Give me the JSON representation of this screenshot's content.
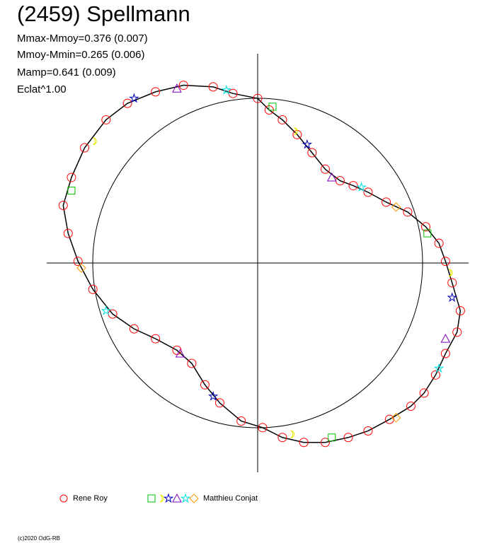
{
  "chart_data": {
    "type": "polar-scatter",
    "title": "(2459) Spellmann",
    "annotations": [
      "Mmax-Mmoy=0.376 (0.007)",
      "Mmoy-Mmin=0.265 (0.006)",
      "Mamp=0.641 (0.009)",
      "Eclat^1.00"
    ],
    "footer": "(c)2020 OdG-RB",
    "xlim": [
      -1.28,
      1.28
    ],
    "ylim": [
      -1.28,
      1.28
    ],
    "series": [
      {
        "name": "Rene Roy",
        "color": "#ff0000",
        "x": [
          0,
          0.07,
          0.15,
          0.24,
          0.33,
          0.41,
          0.5,
          0.58,
          0.67,
          0.78,
          0.91,
          1.02,
          1.1,
          1.14,
          1.18,
          1.23,
          1.21,
          1.14,
          1.08,
          1.01,
          0.93,
          0.8,
          0.67,
          0.55,
          0.41,
          0.28,
          0.15,
          0.03,
          -0.1,
          -0.23,
          -0.32,
          -0.4,
          -0.49,
          -0.62,
          -0.75,
          -0.88,
          -1.0,
          -1.09,
          -1.15,
          -1.18,
          -1.13,
          -1.05,
          -0.92,
          -0.79,
          -0.62,
          -0.45,
          -0.27,
          -0.15
        ],
        "values": [
          1.0,
          0.93,
          0.87,
          0.78,
          0.67,
          0.57,
          0.5,
          0.47,
          0.43,
          0.37,
          0.31,
          0.22,
          0.12,
          0.01,
          -0.12,
          -0.29,
          -0.42,
          -0.55,
          -0.68,
          -0.79,
          -0.87,
          -0.95,
          -1.02,
          -1.06,
          -1.09,
          -1.09,
          -1.06,
          -1.0,
          -0.96,
          -0.85,
          -0.74,
          -0.61,
          -0.53,
          -0.46,
          -0.4,
          -0.31,
          -0.16,
          0.01,
          0.18,
          0.35,
          0.52,
          0.7,
          0.87,
          0.97,
          1.04,
          1.08,
          1.07,
          1.03
        ]
      },
      {
        "name": "Matthieu Conjat",
        "colors": [
          "#00c000",
          "#e8e800",
          "#0000c0",
          "#8000c0",
          "#00e0e0",
          "#ff9900"
        ],
        "x": [
          0.09,
          0.22,
          0.3,
          0.45,
          0.63,
          0.84,
          1.03,
          1.16,
          1.18,
          1.14,
          1.1,
          0.84,
          0.45,
          0.2,
          -0.27,
          -0.47,
          -0.92,
          -1.07,
          -1.13,
          -1.0,
          -0.75,
          -0.49,
          -0.19
        ],
        "values": [
          0.95,
          0.8,
          0.72,
          0.52,
          0.46,
          0.34,
          0.18,
          -0.06,
          -0.21,
          -0.46,
          -0.64,
          -0.94,
          -1.06,
          -1.04,
          -0.81,
          -0.55,
          -0.29,
          -0.03,
          0.44,
          0.74,
          1.0,
          1.06,
          1.05
        ]
      }
    ]
  }
}
